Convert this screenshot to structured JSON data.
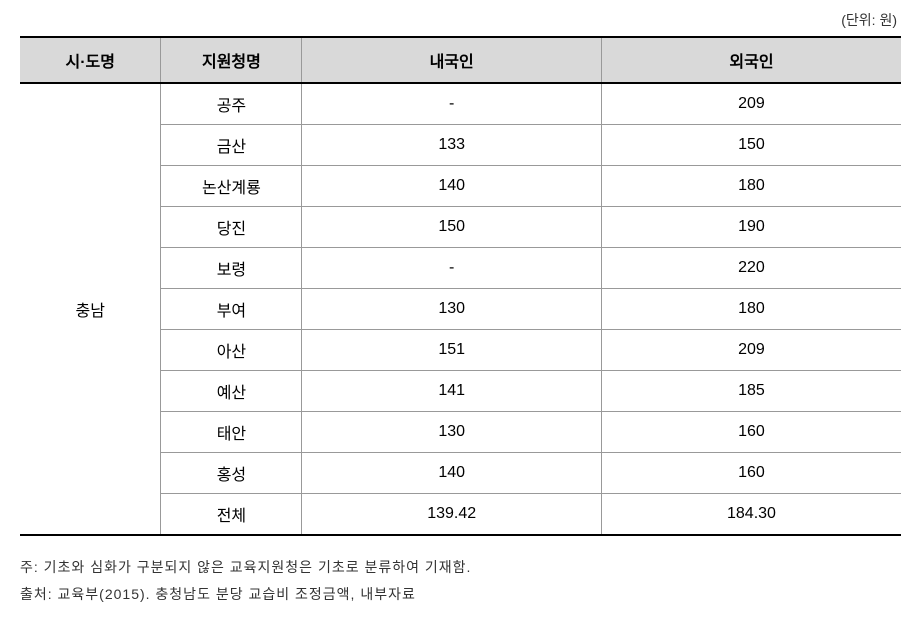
{
  "unit_label": "(단위: 원)",
  "table": {
    "columns": [
      {
        "label": "시·도명",
        "class": "col-province"
      },
      {
        "label": "지원청명",
        "class": "col-office"
      },
      {
        "label": "내국인",
        "class": "col-domestic"
      },
      {
        "label": "외국인",
        "class": "col-foreign"
      }
    ],
    "province_name": "충남",
    "rows": [
      {
        "office": "공주",
        "domestic": "-",
        "foreign": "209"
      },
      {
        "office": "금산",
        "domestic": "133",
        "foreign": "150"
      },
      {
        "office": "논산계룡",
        "domestic": "140",
        "foreign": "180"
      },
      {
        "office": "당진",
        "domestic": "150",
        "foreign": "190"
      },
      {
        "office": "보령",
        "domestic": "-",
        "foreign": "220"
      },
      {
        "office": "부여",
        "domestic": "130",
        "foreign": "180"
      },
      {
        "office": "아산",
        "domestic": "151",
        "foreign": "209"
      },
      {
        "office": "예산",
        "domestic": "141",
        "foreign": "185"
      },
      {
        "office": "태안",
        "domestic": "130",
        "foreign": "160"
      },
      {
        "office": "홍성",
        "domestic": "140",
        "foreign": "160"
      },
      {
        "office": "전체",
        "domestic": "139.42",
        "foreign": "184.30"
      }
    ]
  },
  "notes": {
    "note1": "주: 기초와 심화가 구분되지 않은 교육지원청은 기초로 분류하여 기재함.",
    "note2": "출처: 교육부(2015). 충청남도 분당 교습비 조정금액, 내부자료"
  }
}
